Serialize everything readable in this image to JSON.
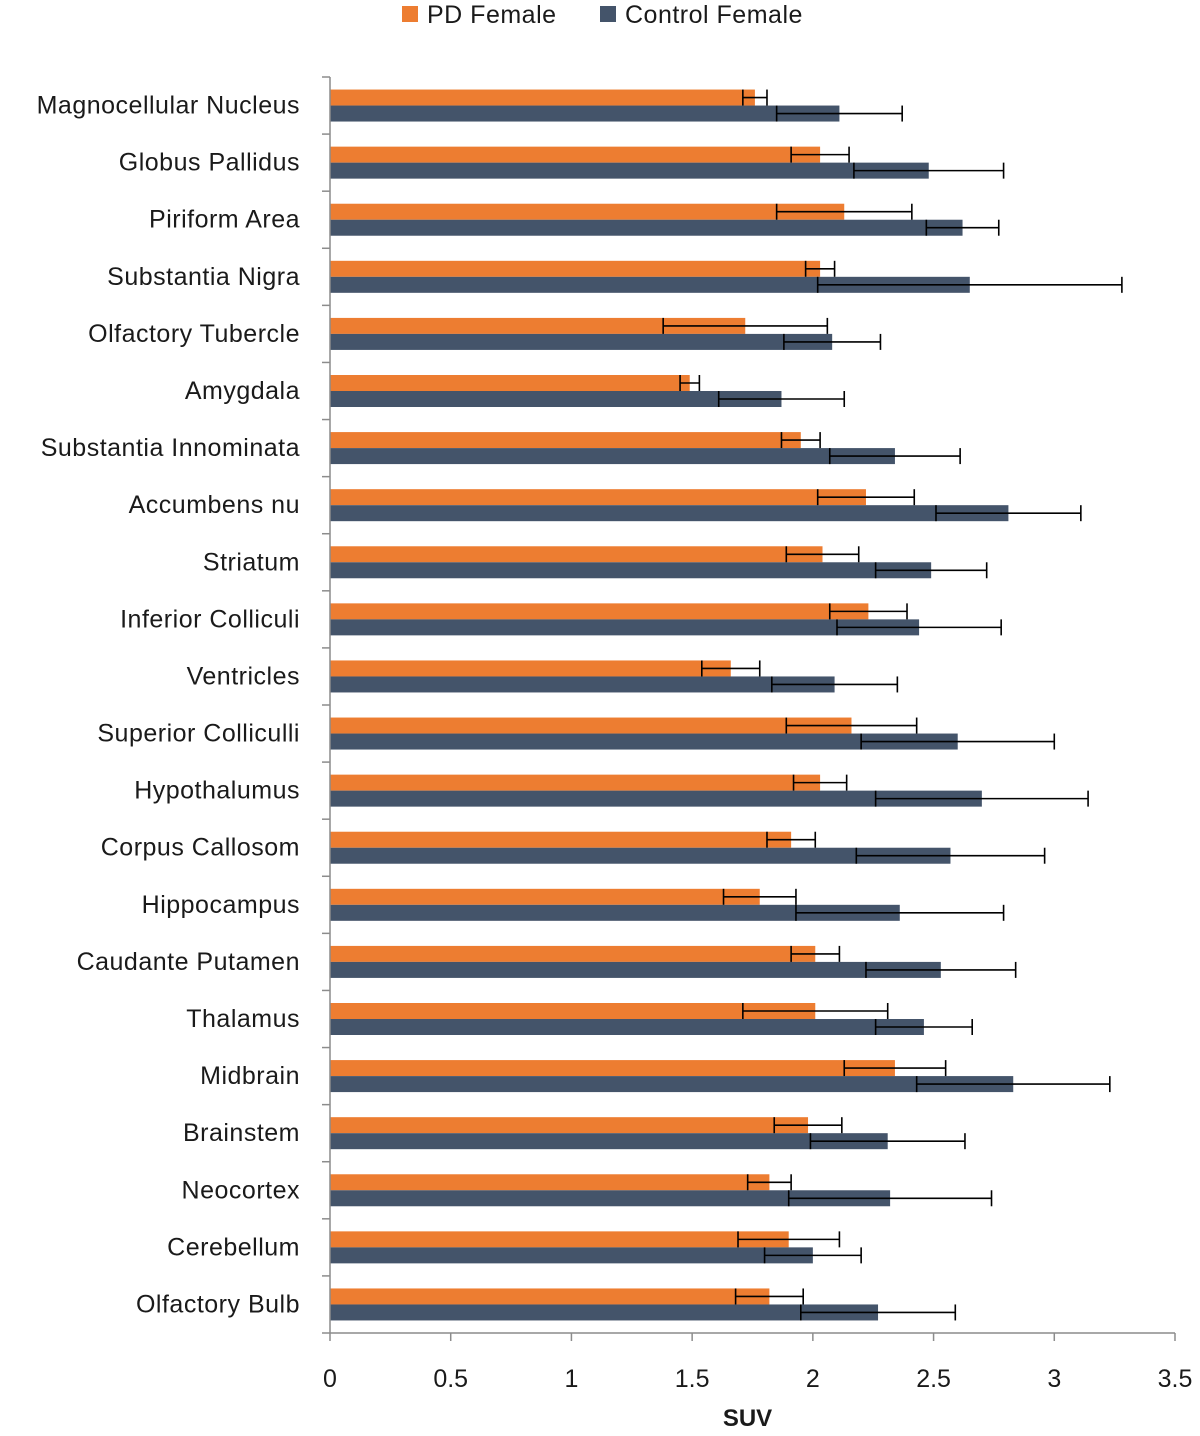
{
  "chart_data": {
    "type": "bar",
    "orientation": "horizontal",
    "title": "",
    "xlabel": "SUV",
    "ylabel": "",
    "xlim": [
      0,
      3.5
    ],
    "xticks": [
      0,
      0.5,
      1,
      1.5,
      2,
      2.5,
      3,
      3.5
    ],
    "xtick_labels": [
      "0",
      "0.5",
      "1",
      "1.5",
      "2",
      "2.5",
      "3",
      "3.5"
    ],
    "grid": false,
    "legend_position": "top-center",
    "categories": [
      "Magnocellular Nucleus",
      "Globus Pallidus",
      "Piriform Area",
      "Substantia Nigra",
      "Olfactory Tubercle",
      "Amygdala",
      "Substantia Innominata",
      "Accumbens nu",
      "Striatum",
      "Inferior Colliculi",
      "Ventricles",
      "Superior Colliculli",
      "Hypothalumus",
      "Corpus Callosom",
      "Hippocampus",
      "Caudante Putamen",
      "Thalamus",
      "Midbrain",
      "Brainstem",
      "Neocortex",
      "Cerebellum",
      "Olfactory Bulb"
    ],
    "series": [
      {
        "name": "PD Female",
        "color": "#ed7d31",
        "values": [
          1.76,
          2.03,
          2.13,
          2.03,
          1.72,
          1.49,
          1.95,
          2.22,
          2.04,
          2.23,
          1.66,
          2.16,
          2.03,
          1.91,
          1.78,
          2.01,
          2.01,
          2.34,
          1.98,
          1.82,
          1.9,
          1.82
        ],
        "errors": [
          0.05,
          0.12,
          0.28,
          0.06,
          0.34,
          0.04,
          0.08,
          0.2,
          0.15,
          0.16,
          0.12,
          0.27,
          0.11,
          0.1,
          0.15,
          0.1,
          0.3,
          0.21,
          0.14,
          0.09,
          0.21,
          0.14
        ]
      },
      {
        "name": "Control Female",
        "color": "#44546a",
        "values": [
          2.11,
          2.48,
          2.62,
          2.65,
          2.08,
          1.87,
          2.34,
          2.81,
          2.49,
          2.44,
          2.09,
          2.6,
          2.7,
          2.57,
          2.36,
          2.53,
          2.46,
          2.83,
          2.31,
          2.32,
          2.0,
          2.27
        ],
        "errors": [
          0.26,
          0.31,
          0.15,
          0.63,
          0.2,
          0.26,
          0.27,
          0.3,
          0.23,
          0.34,
          0.26,
          0.4,
          0.44,
          0.39,
          0.43,
          0.31,
          0.2,
          0.4,
          0.32,
          0.42,
          0.2,
          0.32
        ]
      }
    ]
  }
}
